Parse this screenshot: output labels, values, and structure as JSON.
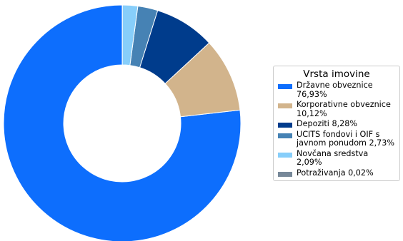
{
  "chart_data": {
    "type": "pie",
    "variant": "donut",
    "legend_title": "Vrsta imovine",
    "legend_placement": "right",
    "start_angle_deg": 90,
    "direction": "counterclockwise",
    "slices": [
      {
        "label_lines": [
          "Državne obveznice",
          "76,93%"
        ],
        "value": 76.93,
        "color": "#0d6efd"
      },
      {
        "label_lines": [
          "Korporativne obveznice",
          "10,12%"
        ],
        "value": 10.12,
        "color": "#d2b48c"
      },
      {
        "label_lines": [
          "Depoziti 8,28%"
        ],
        "value": 8.28,
        "color": "#003c8c"
      },
      {
        "label_lines": [
          "UCITS fondovi i OIF s",
          "javnom ponudom 2,73%"
        ],
        "value": 2.73,
        "color": "#4682b4"
      },
      {
        "label_lines": [
          "Novčana sredstva 2,09%"
        ],
        "value": 2.09,
        "color": "#87cefa"
      },
      {
        "label_lines": [
          "Potraživanja 0,02%"
        ],
        "value": 0.02,
        "color": "#778899"
      }
    ]
  }
}
